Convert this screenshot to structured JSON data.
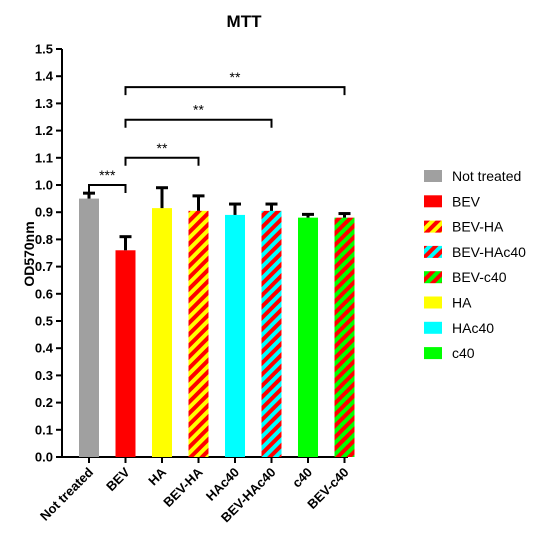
{
  "chart_data": {
    "type": "bar",
    "title": "MTT",
    "xlabel": "",
    "ylabel": "OD570nm",
    "ylim": [
      0,
      1.5
    ],
    "yticks": [
      "0.0",
      "0.1",
      "0.2",
      "0.3",
      "0.4",
      "0.5",
      "0.6",
      "0.7",
      "0.8",
      "0.9",
      "1.0",
      "1.1",
      "1.2",
      "1.3",
      "1.4",
      "1.5"
    ],
    "grid": false,
    "legend_position": "right",
    "categories": [
      "Not treated",
      "BEV",
      "HA",
      "BEV-HA",
      "HAc40",
      "BEV-HAc40",
      "c40",
      "BEV-c40"
    ],
    "values": [
      0.95,
      0.76,
      0.915,
      0.905,
      0.89,
      0.905,
      0.88,
      0.88
    ],
    "errors": [
      0.02,
      0.05,
      0.075,
      0.055,
      0.04,
      0.025,
      0.012,
      0.015
    ],
    "colors": [
      "#a0a0a0",
      "#ff0000",
      "#ffff00",
      "#ffff00",
      "#00ffff",
      "#00ffff",
      "#00ff00",
      "#00ff00"
    ],
    "stripe_colors": [
      "",
      "",
      "",
      "#ff0000",
      "",
      "#ff0000",
      "",
      "#ff0000"
    ],
    "legend": [
      {
        "label": "Not treated",
        "color": "#a0a0a0",
        "stripe": ""
      },
      {
        "label": "BEV",
        "color": "#ff0000",
        "stripe": ""
      },
      {
        "label": "BEV-HA",
        "color": "#ffff00",
        "stripe": "#ff0000"
      },
      {
        "label": "BEV-HAc40",
        "color": "#00ffff",
        "stripe": "#ff0000"
      },
      {
        "label": "BEV-c40",
        "color": "#00ff00",
        "stripe": "#ff0000"
      },
      {
        "label": "HA",
        "color": "#ffff00",
        "stripe": ""
      },
      {
        "label": "HAc40",
        "color": "#00ffff",
        "stripe": ""
      },
      {
        "label": "c40",
        "color": "#00ff00",
        "stripe": ""
      }
    ],
    "significance": [
      {
        "from": 0,
        "to": 1,
        "label": "***",
        "level": 1.0
      },
      {
        "from": 1,
        "to": 3,
        "label": "**",
        "level": 1.1
      },
      {
        "from": 1,
        "to": 5,
        "label": "**",
        "level": 1.24
      },
      {
        "from": 1,
        "to": 7,
        "label": "**",
        "level": 1.36
      }
    ]
  }
}
